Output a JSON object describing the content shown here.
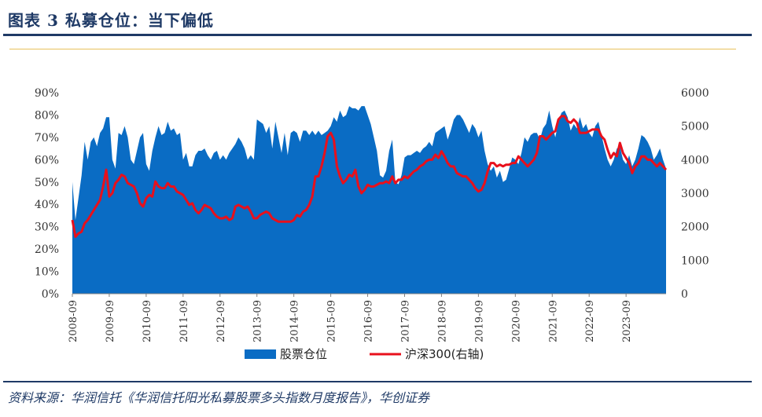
{
  "figure_title": "图表 3    私募仓位：当下偏低",
  "source_text": "资料来源：华润信托《华润信托阳光私募股票多头指数月度报告》，华创证券",
  "colors": {
    "area": "#0a6cc4",
    "line": "#e8101c",
    "title": "#1f3a66",
    "rule_gold": "#e8c25c"
  },
  "chart_data": {
    "type": "area",
    "x_start": "2008-09",
    "x_frequency": "monthly",
    "x_tick_labels": [
      "2008-09",
      "2009-09",
      "2010-09",
      "2011-09",
      "2012-09",
      "2013-09",
      "2014-09",
      "2015-09",
      "2016-09",
      "2017-09",
      "2018-09",
      "2019-09",
      "2020-09",
      "2021-09",
      "2022-09",
      "2023-09"
    ],
    "y_left_ticks": [
      "0%",
      "10%",
      "20%",
      "30%",
      "40%",
      "50%",
      "60%",
      "70%",
      "80%",
      "90%"
    ],
    "y_left_range": [
      0,
      90
    ],
    "y_right_ticks": [
      "0",
      "1000",
      "2000",
      "3000",
      "4000",
      "5000",
      "6000"
    ],
    "y_right_range": [
      0,
      6000
    ],
    "legend": [
      "股票仓位",
      "沪深300(右轴)"
    ],
    "legend_position": "bottom",
    "series": [
      {
        "name": "股票仓位",
        "axis": "left",
        "values": [
          50,
          33,
          43,
          53,
          68,
          60,
          68,
          70,
          66,
          72,
          74,
          79,
          79,
          60,
          56,
          72,
          71,
          75,
          70,
          60,
          58,
          64,
          70,
          72,
          58,
          55,
          64,
          70,
          75,
          71,
          72,
          77,
          73,
          74,
          71,
          72,
          60,
          63,
          57,
          57,
          62,
          64,
          64,
          65,
          62,
          60,
          63,
          64,
          60,
          62,
          60,
          63,
          65,
          67,
          70,
          68,
          65,
          60,
          62,
          60,
          78,
          77,
          76,
          72,
          75,
          65,
          77,
          70,
          63,
          72,
          62,
          72,
          73,
          72,
          68,
          73,
          73,
          71,
          73,
          71,
          73,
          71,
          72,
          73,
          75,
          79,
          77,
          82,
          79,
          80,
          84,
          83,
          83,
          82,
          84,
          84,
          80,
          76,
          70,
          64,
          53,
          52,
          55,
          64,
          69,
          50,
          49,
          53,
          61,
          62,
          62,
          63,
          64,
          63,
          65,
          66,
          68,
          66,
          72,
          73,
          74,
          75,
          69,
          73,
          78,
          80,
          80,
          78,
          75,
          72,
          76,
          74,
          70,
          73,
          64,
          58,
          55,
          57,
          52,
          55,
          50,
          51,
          56,
          61,
          60,
          58,
          63,
          70,
          68,
          71,
          72,
          72,
          69,
          74,
          76,
          82,
          75,
          70,
          77,
          81,
          82,
          79,
          73,
          76,
          74,
          79,
          74,
          76,
          72,
          70,
          75,
          77,
          71,
          65,
          60,
          57,
          60,
          65,
          66,
          60,
          58,
          62,
          57,
          60,
          65,
          71,
          70,
          68,
          65,
          60,
          62,
          65,
          60,
          56
        ]
      },
      {
        "name": "沪深300(右轴)",
        "axis": "right",
        "values": [
          2200,
          1700,
          1800,
          1850,
          2100,
          2200,
          2350,
          2500,
          2650,
          2800,
          3200,
          3700,
          2900,
          3000,
          3300,
          3400,
          3550,
          3500,
          3300,
          3250,
          3200,
          3000,
          2700,
          2600,
          2850,
          2950,
          2900,
          3350,
          3200,
          3150,
          3150,
          3300,
          3200,
          3200,
          3050,
          3000,
          2950,
          2800,
          2650,
          2700,
          2500,
          2400,
          2500,
          2650,
          2600,
          2550,
          2400,
          2300,
          2250,
          2250,
          2300,
          2200,
          2250,
          2600,
          2650,
          2600,
          2550,
          2600,
          2450,
          2250,
          2250,
          2350,
          2400,
          2450,
          2400,
          2250,
          2200,
          2150,
          2150,
          2150,
          2150,
          2150,
          2200,
          2350,
          2300,
          2450,
          2500,
          2650,
          2900,
          3500,
          3500,
          3800,
          4200,
          4700,
          4800,
          4600,
          3800,
          3500,
          3300,
          3400,
          3550,
          3500,
          3700,
          3200,
          3000,
          3100,
          3250,
          3200,
          3200,
          3250,
          3300,
          3300,
          3350,
          3300,
          3500,
          3300,
          3400,
          3400,
          3500,
          3450,
          3550,
          3650,
          3700,
          3800,
          3850,
          3950,
          4000,
          4000,
          4150,
          4050,
          4250,
          4100,
          3900,
          3800,
          3800,
          3600,
          3550,
          3500,
          3500,
          3400,
          3300,
          3150,
          3050,
          3100,
          3300,
          3650,
          3900,
          3900,
          3800,
          3850,
          3800,
          3850,
          3850,
          3900,
          3900,
          4100,
          4000,
          3900,
          3800,
          3900,
          4000,
          4200,
          4700,
          4700,
          4600,
          4700,
          4800,
          4850,
          5200,
          5300,
          5300,
          5150,
          5100,
          5200,
          5100,
          4800,
          4800,
          4800,
          4850,
          4900,
          4900,
          4900,
          4700,
          4600,
          4300,
          4050,
          4200,
          4100,
          4500,
          4200,
          4050,
          3900,
          3600,
          3800,
          3900,
          4100,
          4100,
          4000,
          4000,
          3900,
          3800,
          3900,
          3800,
          3700
        ]
      }
    ]
  }
}
